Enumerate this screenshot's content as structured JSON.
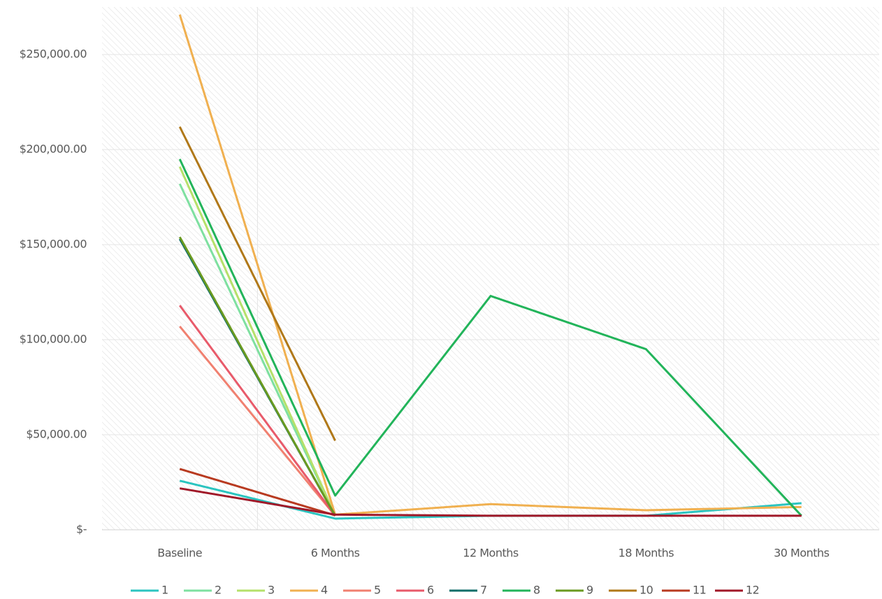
{
  "chart_data": {
    "type": "line",
    "categories": [
      "Baseline",
      "6 Months",
      "12 Months",
      "18 Months",
      "30 Months"
    ],
    "ylim": [
      0,
      275000
    ],
    "yticks": [
      {
        "value": 0,
        "label": "$-"
      },
      {
        "value": 50000,
        "label": "$50,000.00"
      },
      {
        "value": 100000,
        "label": "$100,000.00"
      },
      {
        "value": 150000,
        "label": "$150,000.00"
      },
      {
        "value": 200000,
        "label": "$200,000.00"
      },
      {
        "value": 250000,
        "label": "$250,000.00"
      }
    ],
    "grid": true,
    "legend": "bottom",
    "series": [
      {
        "name": "1",
        "color": "#2bc4c0",
        "values": [
          25800,
          5900,
          7400,
          7400,
          14000
        ]
      },
      {
        "name": "2",
        "color": "#7ee0a0",
        "values": [
          182000,
          7400,
          null,
          null,
          null
        ]
      },
      {
        "name": "3",
        "color": "#b5e06a",
        "values": [
          191000,
          7400,
          null,
          null,
          null
        ]
      },
      {
        "name": "4",
        "color": "#f0b050",
        "values": [
          271000,
          8000,
          13500,
          10300,
          12000
        ]
      },
      {
        "name": "5",
        "color": "#f08070",
        "values": [
          107000,
          7400,
          null,
          null,
          null
        ]
      },
      {
        "name": "6",
        "color": "#e85a6a",
        "values": [
          118000,
          7400,
          null,
          null,
          null
        ]
      },
      {
        "name": "7",
        "color": "#0f6e68",
        "values": [
          153000,
          7400,
          null,
          null,
          null
        ]
      },
      {
        "name": "8",
        "color": "#22b45a",
        "values": [
          195000,
          18000,
          123000,
          95000,
          7400
        ]
      },
      {
        "name": "9",
        "color": "#6a9a20",
        "values": [
          154000,
          7400,
          null,
          null,
          null
        ]
      },
      {
        "name": "10",
        "color": "#b07818",
        "values": [
          212000,
          46900,
          null,
          null,
          null
        ]
      },
      {
        "name": "11",
        "color": "#b83a20",
        "values": [
          32000,
          7600,
          null,
          null,
          null
        ]
      },
      {
        "name": "12",
        "color": "#a01828",
        "values": [
          21800,
          8000,
          7400,
          7400,
          7400
        ]
      }
    ]
  }
}
